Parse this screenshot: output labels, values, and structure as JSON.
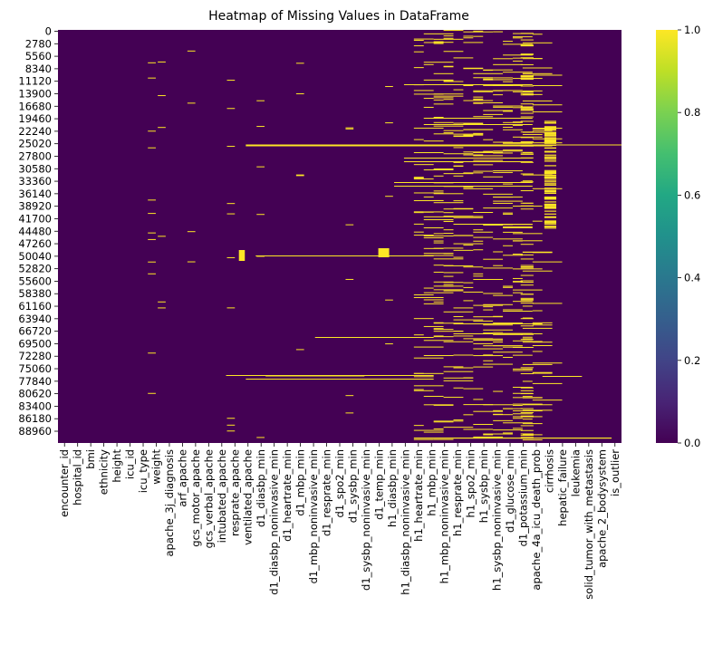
{
  "chart_data": {
    "type": "heatmap",
    "title": "Heatmap of Missing Values in DataFrame",
    "xlabel": "",
    "ylabel": "",
    "y_tick_labels": [
      "0",
      "2780",
      "5560",
      "8340",
      "11120",
      "13900",
      "16680",
      "19460",
      "22240",
      "25020",
      "27800",
      "30580",
      "33360",
      "36140",
      "38920",
      "41700",
      "44480",
      "47260",
      "50040",
      "52820",
      "55600",
      "58380",
      "61160",
      "63940",
      "66720",
      "69500",
      "72280",
      "75060",
      "77840",
      "80620",
      "83400",
      "86180",
      "88960"
    ],
    "x_tick_labels": [
      "encounter_id",
      "hospital_id",
      "bmi",
      "ethnicity",
      "height",
      "icu_id",
      "icu_type",
      "weight",
      "apache_3j_diagnosis",
      "arf_apache",
      "gcs_motor_apache",
      "gcs_verbal_apache",
      "intubated_apache",
      "resprate_apache",
      "ventilated_apache",
      "d1_diasbp_min",
      "d1_diasbp_noninvasive_min",
      "d1_heartrate_min",
      "d1_mbp_min",
      "d1_mbp_noninvasive_min",
      "d1_resprate_min",
      "d1_spo2_min",
      "d1_sysbp_min",
      "d1_sysbp_noninvasive_min",
      "d1_temp_min",
      "h1_diasbp_min",
      "h1_diasbp_noninvasive_min",
      "h1_heartrate_min",
      "h1_mbp_min",
      "h1_mbp_noninvasive_min",
      "h1_resprate_min",
      "h1_spo2_min",
      "h1_sysbp_min",
      "h1_sysbp_noninvasive_min",
      "d1_glucose_min",
      "d1_potassium_min",
      "apache_4a_icu_death_prob",
      "cirrhosis",
      "hepatic_failure",
      "leukemia",
      "solid_tumor_with_metastasis",
      "apache_2_bodysystem",
      "is_outlier"
    ],
    "value_range": [
      0,
      1
    ],
    "colormap": "viridis",
    "colorbar_ticks": [
      "0.0",
      "0.2",
      "0.4",
      "0.6",
      "0.8",
      "1.0"
    ],
    "grid": false,
    "legend": "colorbar-right",
    "colors": {
      "missing_false": "#440154",
      "missing_true": "#fde725"
    }
  }
}
